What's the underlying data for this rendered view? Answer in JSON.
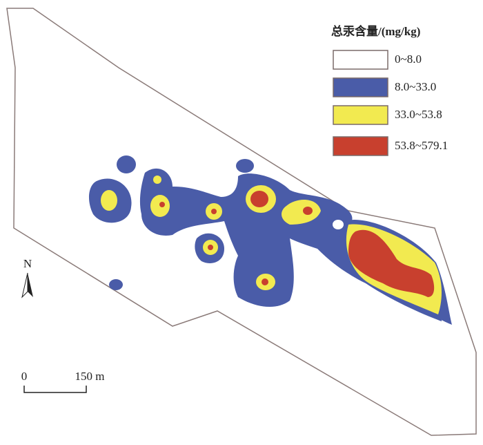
{
  "legend": {
    "title": "总汞含量/(mg/kg)",
    "items": [
      {
        "label": "0~8.0",
        "color": "#ffffff"
      },
      {
        "label": "8.0~33.0",
        "color": "#4a5ca8"
      },
      {
        "label": "33.0~53.8",
        "color": "#f2ea50"
      },
      {
        "label": "53.8~579.1",
        "color": "#c8402e"
      }
    ]
  },
  "north_arrow": {
    "label": "N"
  },
  "scale_bar": {
    "labels": [
      "0",
      "150 m"
    ]
  }
}
